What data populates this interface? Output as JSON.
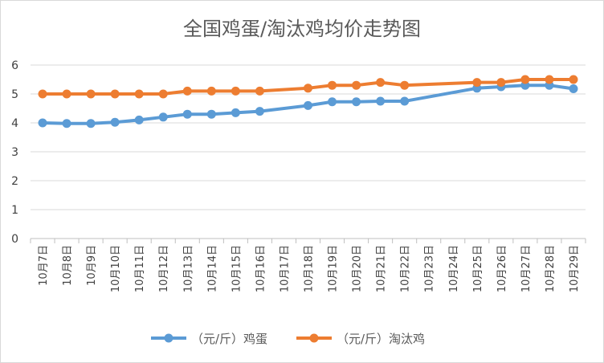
{
  "chart_data": {
    "type": "line",
    "title": "全国鸡蛋/淘汰鸡均价走势图",
    "categories": [
      "10月7日",
      "10月8日",
      "10月9日",
      "10月10日",
      "10月11日",
      "10月12日",
      "10月13日",
      "10月14日",
      "10月15日",
      "10月16日",
      "10月17日",
      "10月18日",
      "10月19日",
      "10月20日",
      "10月21日",
      "10月22日",
      "10月23日",
      "10月24日",
      "10月25日",
      "10月26日",
      "10月27日",
      "10月28日",
      "10月29日"
    ],
    "ylim": [
      0,
      6
    ],
    "yticks": [
      "0",
      "1",
      "2",
      "3",
      "4",
      "5",
      "6"
    ],
    "grid": true,
    "legend_position": "bottom",
    "series": [
      {
        "name": "（元/斤）鸡蛋",
        "color": "#5b9bd5",
        "values": [
          4.0,
          3.98,
          3.98,
          4.02,
          4.1,
          4.2,
          4.3,
          4.3,
          4.35,
          4.4,
          null,
          4.6,
          4.73,
          4.73,
          4.75,
          4.75,
          null,
          null,
          5.2,
          5.25,
          5.3,
          5.3,
          5.18
        ]
      },
      {
        "name": "（元/斤）淘汰鸡",
        "color": "#ed7d31",
        "values": [
          5.0,
          5.0,
          5.0,
          5.0,
          5.0,
          5.0,
          5.1,
          5.1,
          5.1,
          5.1,
          null,
          5.2,
          5.3,
          5.3,
          5.4,
          5.3,
          null,
          null,
          5.4,
          5.4,
          5.5,
          5.5,
          5.5
        ]
      }
    ]
  }
}
